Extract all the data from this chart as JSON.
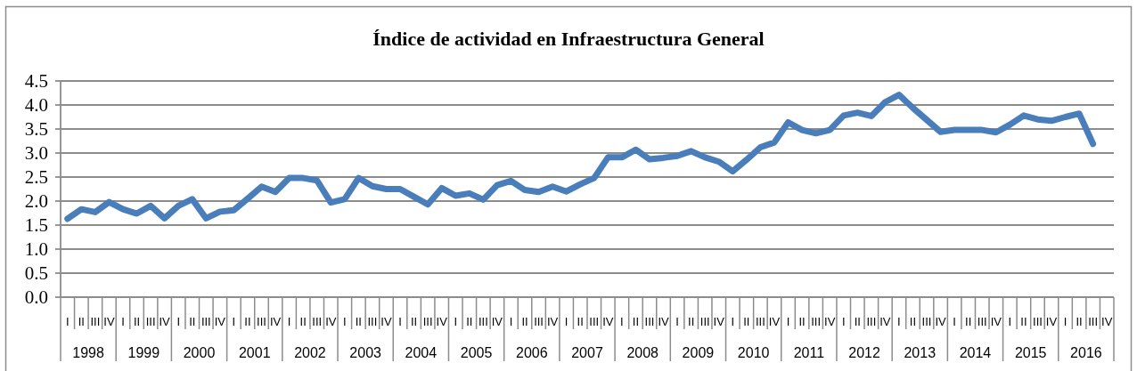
{
  "chart_data": {
    "type": "line",
    "title": "Índice de actividad en Infraestructura General",
    "categories": [
      "I",
      "II",
      "III",
      "IV",
      "I",
      "II",
      "III",
      "IV",
      "I",
      "II",
      "III",
      "IV",
      "I",
      "II",
      "III",
      "IV",
      "I",
      "II",
      "III",
      "IV",
      "I",
      "II",
      "III",
      "IV",
      "I",
      "II",
      "III",
      "IV",
      "I",
      "II",
      "III",
      "IV",
      "I",
      "II",
      "III",
      "IV",
      "I",
      "II",
      "III",
      "IV",
      "I",
      "II",
      "III",
      "IV",
      "I",
      "II",
      "III",
      "IV",
      "I",
      "II",
      "III",
      "IV",
      "I",
      "II",
      "III",
      "IV",
      "I",
      "II",
      "III",
      "IV",
      "I",
      "II",
      "III",
      "IV",
      "I",
      "II",
      "III",
      "IV",
      "I",
      "II",
      "III",
      "IV",
      "I",
      "II",
      "III",
      "IV"
    ],
    "annotations": [
      "1998",
      "1999",
      "2000",
      "2001",
      "2002",
      "2003",
      "2004",
      "2005",
      "2006",
      "2007",
      "2008",
      "2009",
      "2010",
      "2011",
      "2012",
      "2013",
      "2014",
      "2015",
      "2016"
    ],
    "series": [
      {
        "color": "#4a7ebb",
        "values": [
          1.63,
          1.83,
          1.77,
          1.98,
          1.83,
          1.74,
          1.9,
          1.64,
          1.9,
          2.04,
          1.64,
          1.78,
          1.81,
          2.05,
          2.3,
          2.19,
          2.48,
          2.48,
          2.43,
          1.97,
          2.04,
          2.48,
          2.31,
          2.25,
          2.25,
          2.09,
          1.93,
          2.27,
          2.11,
          2.16,
          2.03,
          2.33,
          2.42,
          2.23,
          2.19,
          2.3,
          2.2,
          2.35,
          2.48,
          2.91,
          2.91,
          3.07,
          2.87,
          2.9,
          2.94,
          3.04,
          2.91,
          2.82,
          2.62,
          2.86,
          3.12,
          3.22,
          3.64,
          3.48,
          3.41,
          3.48,
          3.78,
          3.84,
          3.77,
          4.06,
          4.21,
          3.94,
          3.69,
          3.44,
          3.48,
          3.48,
          3.48,
          3.43,
          3.59,
          3.78,
          3.7,
          3.67,
          3.75,
          3.82,
          3.19,
          null
        ]
      }
    ],
    "ylim": [
      0,
      4.5
    ],
    "yticks": [
      {
        "value": 0,
        "label": "0.0"
      },
      {
        "value": 0.5,
        "label": "0.5"
      },
      {
        "value": 1,
        "label": "1.0"
      },
      {
        "value": 1.5,
        "label": "1.5"
      },
      {
        "value": 2,
        "label": "2.0"
      },
      {
        "value": 2.5,
        "label": "2.5"
      },
      {
        "value": 3,
        "label": "3.0"
      },
      {
        "value": 3.5,
        "label": "3.5"
      },
      {
        "value": 4,
        "label": "4.0"
      },
      {
        "value": 4.5,
        "label": "4.5"
      }
    ],
    "grid": "y",
    "marker": "none",
    "line_style": "solid"
  }
}
